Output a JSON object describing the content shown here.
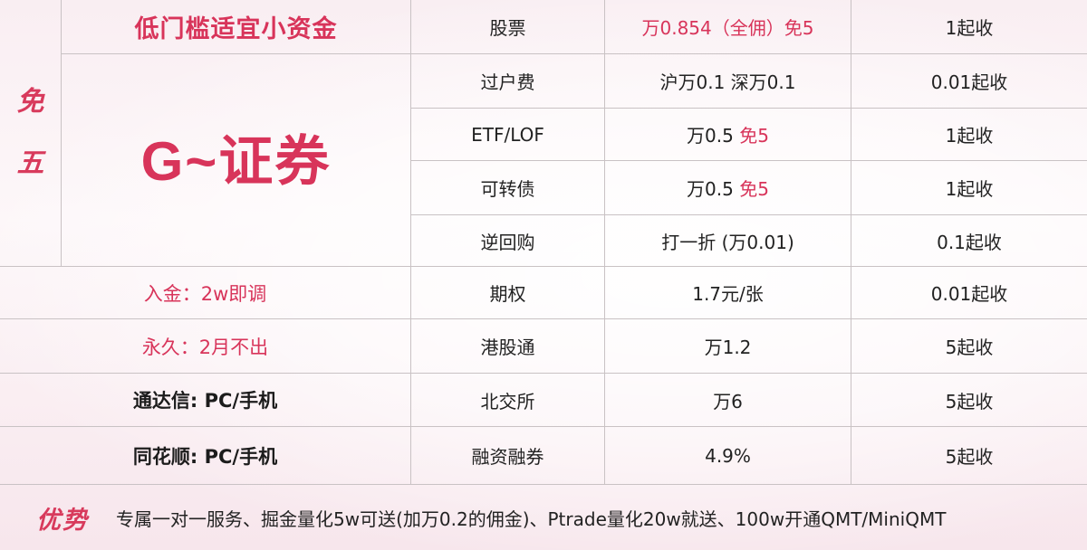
{
  "left": {
    "mian_chars": [
      "免",
      "五"
    ],
    "slogan": "低门槛适宜小资金",
    "brand": "G~证券",
    "info": [
      "入金：2w即调",
      "永久：2月不出",
      "通达信: PC/手机",
      "同花顺: PC/手机"
    ]
  },
  "rows": [
    {
      "item": "股票",
      "rate_main": "万0.854（全佣）免5",
      "rate_red": "",
      "min": "1起收"
    },
    {
      "item": "过户费",
      "rate_main": "沪万0.1 深万0.1",
      "rate_red": "",
      "min": "0.01起收"
    },
    {
      "item": "ETF/LOF",
      "rate_main": "万0.5 ",
      "rate_red": "免5",
      "min": "1起收"
    },
    {
      "item": "可转债",
      "rate_main": "万0.5 ",
      "rate_red": "免5",
      "min": "1起收"
    },
    {
      "item": "逆回购",
      "rate_main": "打一折 (万0.01)",
      "rate_red": "",
      "min": "0.1起收"
    },
    {
      "item": "期权",
      "rate_main": "1.7元/张",
      "rate_red": "",
      "min": "0.01起收"
    },
    {
      "item": "港股通",
      "rate_main": "万1.2",
      "rate_red": "",
      "min": "5起收"
    },
    {
      "item": "北交所",
      "rate_main": "万6",
      "rate_red": "",
      "min": "5起收"
    },
    {
      "item": "融资融券",
      "rate_main": "4.9%",
      "rate_red": "",
      "min": "5起收"
    }
  ],
  "footer": {
    "label": "优势",
    "text": "专属一对一服务、掘金量化5w可送(加万0.2的佣金)、Ptrade量化20w就送、100w开通QMT/MiniQMT"
  },
  "colors": {
    "accent_red": "#d8345a",
    "border": "#c9c2c4"
  }
}
